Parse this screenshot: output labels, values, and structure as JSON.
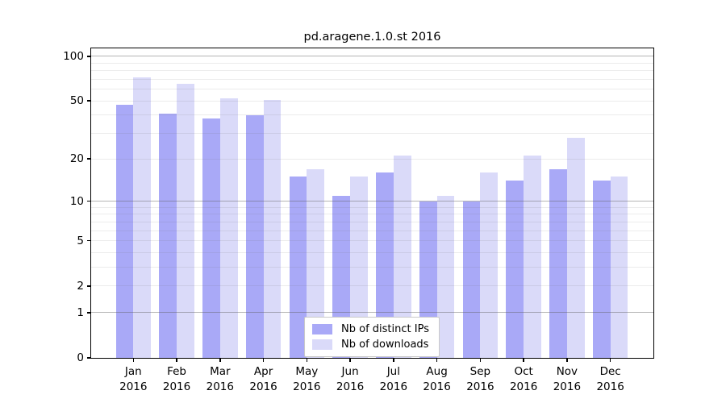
{
  "chart_data": {
    "type": "bar",
    "title": "pd.aragene.1.0.st 2016",
    "scale": "log1p",
    "grid": true,
    "categories": [
      "Jan",
      "Feb",
      "Mar",
      "Apr",
      "May",
      "Jun",
      "Jul",
      "Aug",
      "Sep",
      "Oct",
      "Nov",
      "Dec"
    ],
    "category_year": "2016",
    "series": [
      {
        "name": "Nb of distinct IPs",
        "color": "#a9a9f7",
        "values": [
          47,
          41,
          38,
          40,
          15,
          11,
          16,
          10,
          10,
          14,
          17,
          14
        ]
      },
      {
        "name": "Nb of downloads",
        "color": "#dadaf9",
        "values": [
          72,
          65,
          52,
          51,
          17,
          15,
          21,
          11,
          16,
          21,
          28,
          15
        ]
      }
    ],
    "xlabel": "",
    "ylabel": "",
    "ylim": [
      0,
      113
    ],
    "y_tick_labels": [
      0,
      1,
      2,
      5,
      10,
      20,
      50,
      100
    ],
    "major_gridlines": [
      1,
      10,
      100
    ],
    "minor_gridlines": [
      2,
      3,
      4,
      5,
      6,
      7,
      8,
      9,
      20,
      30,
      40,
      50,
      60,
      70,
      80,
      90
    ],
    "legend_position": "bottom-center"
  },
  "colors": {
    "background": "#ffffff",
    "axis": "#000000",
    "bar_distinct_ips": "#a9a9f7",
    "bar_downloads": "#dadaf9",
    "legend_border": "#c9c9c9",
    "text": "#000000"
  }
}
